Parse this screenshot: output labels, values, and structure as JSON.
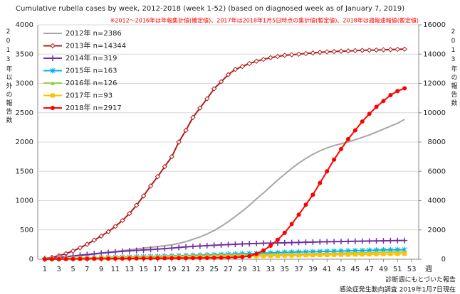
{
  "chart_data": {
    "type": "line",
    "subtitle": "Cumulative rubella cases by week, 2012-2018 (week 1-52)  (based on diagnosed week as of January 7, 2019)",
    "note": "※2012～2016年は年報集計値(確定値)、2017年は2018年1月5日時点の集計値(暫定値)、2018年は週報速報値(暫定値)",
    "ylabel": "2013年以外の報告数",
    "y2label": "2013年の報告数",
    "xlabel": "週",
    "footnotes": [
      "診断週にもとづいた報告",
      "感染症発生動向調査 2019年1月7日現在"
    ],
    "legend": "upper left",
    "grid": true,
    "x": [
      1,
      2,
      3,
      4,
      5,
      6,
      7,
      8,
      9,
      10,
      11,
      12,
      13,
      14,
      15,
      16,
      17,
      18,
      19,
      20,
      21,
      22,
      23,
      24,
      25,
      26,
      27,
      28,
      29,
      30,
      31,
      32,
      33,
      34,
      35,
      36,
      37,
      38,
      39,
      40,
      41,
      42,
      43,
      44,
      45,
      46,
      47,
      48,
      49,
      50,
      51,
      52
    ],
    "xlim": [
      0,
      54
    ],
    "xticks": [
      1,
      3,
      5,
      7,
      9,
      11,
      13,
      15,
      17,
      19,
      21,
      23,
      25,
      27,
      29,
      31,
      33,
      35,
      37,
      39,
      41,
      43,
      45,
      47,
      49,
      51,
      53
    ],
    "ylim": [
      0,
      4000
    ],
    "yticks": [
      0,
      500,
      1000,
      1500,
      2000,
      2500,
      3000,
      3500,
      4000
    ],
    "y2lim": [
      0,
      16000
    ],
    "y2ticks": [
      0,
      2000,
      4000,
      6000,
      8000,
      10000,
      12000,
      14000,
      16000
    ],
    "series": [
      {
        "name": "2012年 n=2386",
        "color": "#a6a6a6",
        "marker": "none",
        "values": [
          10,
          20,
          30,
          40,
          50,
          60,
          70,
          85,
          100,
          115,
          130,
          145,
          160,
          175,
          190,
          205,
          215,
          230,
          245,
          270,
          300,
          340,
          380,
          430,
          490,
          560,
          640,
          730,
          820,
          920,
          1030,
          1130,
          1240,
          1350,
          1450,
          1550,
          1640,
          1720,
          1790,
          1850,
          1900,
          1940,
          1970,
          2000,
          2040,
          2080,
          2120,
          2170,
          2220,
          2270,
          2320,
          2386
        ]
      },
      {
        "name": "2013年 n=14344",
        "color": "#b01e1e",
        "marker": "diamond",
        "axis": "y2",
        "values": [
          40,
          120,
          240,
          380,
          560,
          780,
          1020,
          1300,
          1580,
          1880,
          2240,
          2640,
          3120,
          3680,
          4320,
          5000,
          5640,
          6320,
          7000,
          8000,
          8800,
          9680,
          10320,
          10960,
          11640,
          12120,
          12600,
          12960,
          13160,
          13360,
          13520,
          13640,
          13760,
          13840,
          13920,
          13960,
          14000,
          14040,
          14080,
          14120,
          14160,
          14180,
          14200,
          14220,
          14240,
          14260,
          14270,
          14280,
          14300,
          14310,
          14330,
          14344
        ]
      },
      {
        "name": "2014年 n=319",
        "color": "#7030a0",
        "marker": "plus",
        "values": [
          10,
          20,
          30,
          42,
          55,
          68,
          80,
          92,
          104,
          115,
          125,
          135,
          143,
          150,
          158,
          165,
          172,
          180,
          190,
          200,
          210,
          218,
          225,
          232,
          238,
          244,
          250,
          255,
          260,
          265,
          268,
          272,
          275,
          278,
          281,
          284,
          287,
          290,
          293,
          296,
          298,
          300,
          302,
          304,
          306,
          308,
          310,
          312,
          314,
          316,
          318,
          319
        ]
      },
      {
        "name": "2015年 n=163",
        "color": "#00b0f0",
        "marker": "star",
        "values": [
          3,
          6,
          9,
          12,
          15,
          18,
          21,
          24,
          27,
          30,
          33,
          36,
          39,
          42,
          45,
          48,
          51,
          54,
          57,
          60,
          63,
          66,
          69,
          72,
          76,
          80,
          84,
          88,
          92,
          96,
          100,
          104,
          108,
          112,
          116,
          119,
          122,
          125,
          128,
          131,
          134,
          137,
          140,
          143,
          146,
          149,
          152,
          155,
          157,
          159,
          161,
          163
        ]
      },
      {
        "name": "2016年 n=126",
        "color": "#92d050",
        "marker": "triangle",
        "values": [
          2,
          5,
          7,
          10,
          12,
          15,
          17,
          19,
          22,
          24,
          27,
          29,
          31,
          34,
          36,
          39,
          41,
          43,
          46,
          48,
          51,
          53,
          55,
          58,
          60,
          63,
          65,
          67,
          70,
          72,
          75,
          77,
          79,
          82,
          84,
          87,
          89,
          91,
          94,
          96,
          99,
          101,
          103,
          106,
          108,
          111,
          113,
          116,
          118,
          121,
          123,
          126
        ]
      },
      {
        "name": "2017年 n=93",
        "color": "#ffc000",
        "marker": "square",
        "values": [
          2,
          4,
          5,
          7,
          9,
          11,
          13,
          14,
          16,
          18,
          20,
          21,
          23,
          25,
          27,
          29,
          30,
          32,
          34,
          36,
          38,
          39,
          41,
          43,
          45,
          46,
          48,
          50,
          52,
          54,
          55,
          57,
          59,
          61,
          63,
          64,
          66,
          68,
          70,
          72,
          73,
          75,
          77,
          79,
          80,
          82,
          84,
          86,
          88,
          89,
          91,
          93
        ]
      },
      {
        "name": "2018年 n=2917",
        "color": "#ff0000",
        "marker": "circle",
        "values": [
          0,
          1,
          2,
          3,
          4,
          5,
          6,
          7,
          8,
          9,
          10,
          11,
          12,
          13,
          14,
          15,
          16,
          17,
          18,
          19,
          20,
          21,
          22,
          23,
          24,
          26,
          28,
          32,
          40,
          55,
          90,
          150,
          230,
          330,
          450,
          600,
          760,
          930,
          1100,
          1300,
          1500,
          1700,
          1880,
          2050,
          2200,
          2350,
          2480,
          2600,
          2700,
          2800,
          2870,
          2917
        ]
      }
    ]
  }
}
